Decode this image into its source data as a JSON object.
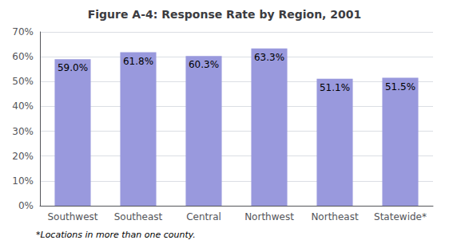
{
  "chart_data": {
    "type": "bar",
    "title": "Figure A-4: Response Rate by Region, 2001",
    "categories": [
      "Southwest",
      "Southeast",
      "Central",
      "Northwest",
      "Northeast",
      "Statewide*"
    ],
    "values": [
      59.0,
      61.8,
      60.3,
      63.3,
      51.1,
      51.5
    ],
    "value_labels": [
      "59.0%",
      "61.8%",
      "60.3%",
      "63.3%",
      "51.1%",
      "51.5%"
    ],
    "data_labels": true,
    "color": "#9999dd",
    "ylim": [
      0,
      70
    ],
    "yticks": [
      {
        "value": 0,
        "label": "0%"
      },
      {
        "value": 10,
        "label": "10%"
      },
      {
        "value": 20,
        "label": "20%"
      },
      {
        "value": 30,
        "label": "30%"
      },
      {
        "value": 40,
        "label": "40%"
      },
      {
        "value": 50,
        "label": "50%"
      },
      {
        "value": 60,
        "label": "60%"
      },
      {
        "value": 70,
        "label": "70%"
      }
    ],
    "grid": true,
    "annotations": [
      "*Locations in more than one county."
    ]
  }
}
